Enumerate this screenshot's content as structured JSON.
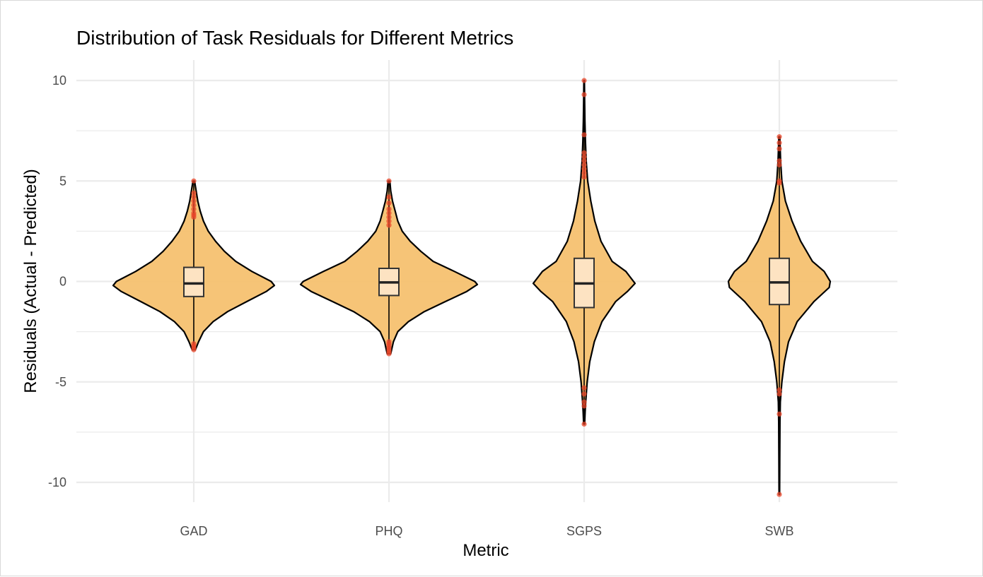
{
  "chart_data": {
    "type": "violin",
    "title": "Distribution of Task Residuals for Different Metrics",
    "xlabel": "Metric",
    "ylabel": "Residuals (Actual - Predicted)",
    "ylim": [
      -11,
      10.5
    ],
    "y_ticks": [
      10,
      5,
      0,
      -5,
      -10
    ],
    "y_tick_labels": [
      "10",
      "5",
      "0",
      "-5",
      "-10"
    ],
    "grid": true,
    "colors": {
      "violin_fill": "#f5c170",
      "violin_stroke": "#000000",
      "box_fill": "#fde3c2",
      "outlier": "#e8452a",
      "grid": "#ebebeb"
    },
    "categories": [
      "GAD",
      "PHQ",
      "SGPS",
      "SWB"
    ],
    "series": [
      {
        "category": "GAD",
        "min": -3.4,
        "q1": -0.75,
        "median": -0.1,
        "q3": 0.7,
        "max": 5.0,
        "density": [
          [
            -3.4,
            0.02
          ],
          [
            -3.0,
            0.06
          ],
          [
            -2.5,
            0.12
          ],
          [
            -2.0,
            0.24
          ],
          [
            -1.5,
            0.42
          ],
          [
            -1.0,
            0.66
          ],
          [
            -0.5,
            0.9
          ],
          [
            -0.2,
            1.0
          ],
          [
            0.0,
            0.96
          ],
          [
            0.5,
            0.72
          ],
          [
            1.0,
            0.52
          ],
          [
            1.5,
            0.38
          ],
          [
            2.0,
            0.27
          ],
          [
            2.5,
            0.18
          ],
          [
            3.0,
            0.12
          ],
          [
            3.5,
            0.08
          ],
          [
            4.0,
            0.05
          ],
          [
            4.5,
            0.03
          ],
          [
            5.0,
            0.01
          ]
        ],
        "outliers": [
          5.0,
          4.4,
          4.2,
          4.0,
          3.8,
          3.6,
          3.4,
          3.3,
          3.2,
          -3.1,
          -3.2,
          -3.3,
          -3.4
        ]
      },
      {
        "category": "PHQ",
        "min": -3.6,
        "q1": -0.7,
        "median": -0.05,
        "q3": 0.65,
        "max": 5.0,
        "density": [
          [
            -3.6,
            0.02
          ],
          [
            -3.0,
            0.05
          ],
          [
            -2.5,
            0.1
          ],
          [
            -2.0,
            0.22
          ],
          [
            -1.5,
            0.4
          ],
          [
            -1.0,
            0.64
          ],
          [
            -0.5,
            0.88
          ],
          [
            -0.15,
            1.0
          ],
          [
            0.0,
            0.97
          ],
          [
            0.5,
            0.74
          ],
          [
            1.0,
            0.5
          ],
          [
            1.5,
            0.36
          ],
          [
            2.0,
            0.24
          ],
          [
            2.5,
            0.15
          ],
          [
            3.0,
            0.1
          ],
          [
            3.5,
            0.07
          ],
          [
            4.0,
            0.04
          ],
          [
            4.5,
            0.02
          ],
          [
            5.0,
            0.01
          ]
        ],
        "outliers": [
          5.0,
          4.2,
          3.9,
          3.6,
          3.4,
          3.2,
          3.0,
          2.8,
          -3.0,
          -3.1,
          -3.2,
          -3.3,
          -3.4,
          -3.5,
          -3.6
        ]
      },
      {
        "category": "SGPS",
        "min": -7.1,
        "q1": -1.3,
        "median": -0.1,
        "q3": 1.15,
        "max": 10.0,
        "density": [
          [
            -7.1,
            0.01
          ],
          [
            -6.5,
            0.02
          ],
          [
            -6.0,
            0.03
          ],
          [
            -5.0,
            0.06
          ],
          [
            -4.0,
            0.11
          ],
          [
            -3.0,
            0.2
          ],
          [
            -2.0,
            0.35
          ],
          [
            -1.0,
            0.62
          ],
          [
            -0.5,
            0.85
          ],
          [
            -0.1,
            1.0
          ],
          [
            0.5,
            0.82
          ],
          [
            1.0,
            0.55
          ],
          [
            2.0,
            0.33
          ],
          [
            3.0,
            0.21
          ],
          [
            4.0,
            0.13
          ],
          [
            5.0,
            0.07
          ],
          [
            6.0,
            0.04
          ],
          [
            7.0,
            0.025
          ],
          [
            8.0,
            0.015
          ],
          [
            9.0,
            0.01
          ],
          [
            10.0,
            0.005
          ]
        ],
        "outliers": [
          10.0,
          9.3,
          7.3,
          6.4,
          6.2,
          6.0,
          5.8,
          5.6,
          5.4,
          5.2,
          -5.3,
          -5.6,
          -6.0,
          -6.2,
          -7.1
        ]
      },
      {
        "category": "SWB",
        "min": -10.6,
        "q1": -1.15,
        "median": -0.05,
        "q3": 1.15,
        "max": 7.2,
        "density": [
          [
            -10.6,
            0.005
          ],
          [
            -9.0,
            0.008
          ],
          [
            -7.0,
            0.012
          ],
          [
            -6.0,
            0.02
          ],
          [
            -5.0,
            0.05
          ],
          [
            -4.0,
            0.1
          ],
          [
            -3.0,
            0.18
          ],
          [
            -2.0,
            0.35
          ],
          [
            -1.0,
            0.68
          ],
          [
            -0.3,
            0.98
          ],
          [
            0.0,
            1.0
          ],
          [
            0.5,
            0.88
          ],
          [
            1.0,
            0.65
          ],
          [
            2.0,
            0.42
          ],
          [
            3.0,
            0.25
          ],
          [
            4.0,
            0.12
          ],
          [
            5.0,
            0.05
          ],
          [
            6.0,
            0.025
          ],
          [
            7.2,
            0.01
          ]
        ],
        "outliers": [
          7.2,
          6.9,
          6.6,
          6.0,
          5.8,
          5.0,
          4.9,
          -5.4,
          -5.6,
          -6.6,
          -10.6
        ]
      }
    ]
  }
}
